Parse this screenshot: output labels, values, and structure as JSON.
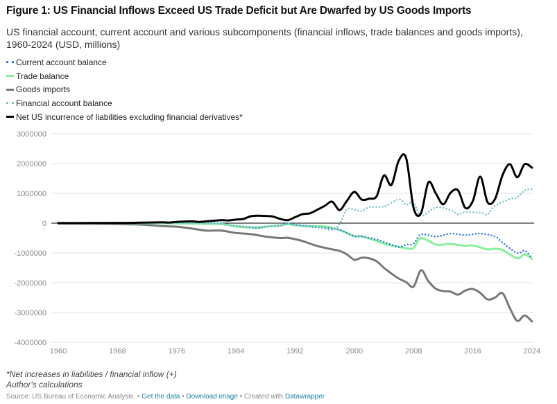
{
  "chart_data": {
    "type": "line",
    "title": "Figure 1: US Financial Inflows Exceed US Trade Deficit but Are Dwarfed by US Goods Imports",
    "subtitle": "US financial account, current account and various subcomponents (financial inflows, trade balances and goods imports), 1960-2024 (USD, millions)",
    "xlabel": "",
    "ylabel": "",
    "xlim": [
      1960,
      2024
    ],
    "ylim": [
      -4000000,
      3000000
    ],
    "x_ticks": [
      "1960",
      "1968",
      "1976",
      "1984",
      "1992",
      "2000",
      "2008",
      "2016",
      "2024"
    ],
    "y_ticks": [
      "3000000",
      "2000000",
      "1000000",
      "0",
      "-1000000",
      "-2000000",
      "-3000000",
      "-4000000"
    ],
    "grid": true,
    "legend_position": "top-left",
    "units": "USD millions (values below in millions of USD millions, i.e. trillions)",
    "series": [
      {
        "name": "Current account balance",
        "color": "#2f80e0",
        "style": "dotted",
        "points": [
          [
            1960,
            0.003
          ],
          [
            1970,
            0.002
          ],
          [
            1976,
            0.004
          ],
          [
            1980,
            0.002
          ],
          [
            1982,
            -0.01
          ],
          [
            1984,
            -0.09
          ],
          [
            1986,
            -0.14
          ],
          [
            1987,
            -0.16
          ],
          [
            1988,
            -0.12
          ],
          [
            1990,
            -0.08
          ],
          [
            1991,
            -0.01
          ],
          [
            1992,
            -0.05
          ],
          [
            1994,
            -0.12
          ],
          [
            1997,
            -0.18
          ],
          [
            1998,
            -0.22
          ],
          [
            2000,
            -0.43
          ],
          [
            2001,
            -0.45
          ],
          [
            2003,
            -0.55
          ],
          [
            2004,
            -0.63
          ],
          [
            2006,
            -0.8
          ],
          [
            2007,
            -0.72
          ],
          [
            2008,
            -0.69
          ],
          [
            2009,
            -0.38
          ],
          [
            2011,
            -0.45
          ],
          [
            2013,
            -0.35
          ],
          [
            2015,
            -0.4
          ],
          [
            2017,
            -0.35
          ],
          [
            2019,
            -0.45
          ],
          [
            2020,
            -0.65
          ],
          [
            2022,
            -1.0
          ],
          [
            2023,
            -0.92
          ],
          [
            2024,
            -1.18
          ]
        ]
      },
      {
        "name": "Trade balance",
        "color": "#86f09a",
        "style": "solid",
        "points": [
          [
            1960,
            0.005
          ],
          [
            1970,
            0.002
          ],
          [
            1976,
            -0.01
          ],
          [
            1980,
            -0.02
          ],
          [
            1982,
            -0.03
          ],
          [
            1984,
            -0.11
          ],
          [
            1986,
            -0.15
          ],
          [
            1987,
            -0.16
          ],
          [
            1988,
            -0.12
          ],
          [
            1990,
            -0.08
          ],
          [
            1991,
            -0.03
          ],
          [
            1992,
            -0.07
          ],
          [
            1994,
            -0.1
          ],
          [
            1996,
            -0.11
          ],
          [
            1998,
            -0.23
          ],
          [
            2000,
            -0.44
          ],
          [
            2001,
            -0.44
          ],
          [
            2003,
            -0.6
          ],
          [
            2004,
            -0.69
          ],
          [
            2006,
            -0.8
          ],
          [
            2007,
            -0.84
          ],
          [
            2008,
            -0.84
          ],
          [
            2009,
            -0.5
          ],
          [
            2011,
            -0.72
          ],
          [
            2012,
            -0.72
          ],
          [
            2013,
            -0.7
          ],
          [
            2015,
            -0.76
          ],
          [
            2016,
            -0.75
          ],
          [
            2018,
            -0.88
          ],
          [
            2019,
            -0.86
          ],
          [
            2020,
            -0.9
          ],
          [
            2022,
            -1.18
          ],
          [
            2023,
            -1.05
          ],
          [
            2024,
            -1.2
          ]
        ]
      },
      {
        "name": "Goods imports",
        "color": "#777777",
        "style": "solid",
        "points": [
          [
            1960,
            -0.015
          ],
          [
            1966,
            -0.025
          ],
          [
            1970,
            -0.04
          ],
          [
            1972,
            -0.06
          ],
          [
            1974,
            -0.1
          ],
          [
            1976,
            -0.12
          ],
          [
            1978,
            -0.18
          ],
          [
            1980,
            -0.25
          ],
          [
            1982,
            -0.25
          ],
          [
            1984,
            -0.33
          ],
          [
            1986,
            -0.37
          ],
          [
            1988,
            -0.45
          ],
          [
            1990,
            -0.5
          ],
          [
            1991,
            -0.49
          ],
          [
            1992,
            -0.54
          ],
          [
            1993,
            -0.6
          ],
          [
            1995,
            -0.77
          ],
          [
            1997,
            -0.88
          ],
          [
            1998,
            -0.93
          ],
          [
            1999,
            -1.05
          ],
          [
            2000,
            -1.23
          ],
          [
            2001,
            -1.16
          ],
          [
            2002,
            -1.18
          ],
          [
            2003,
            -1.28
          ],
          [
            2004,
            -1.5
          ],
          [
            2005,
            -1.69
          ],
          [
            2006,
            -1.86
          ],
          [
            2007,
            -1.98
          ],
          [
            2008,
            -2.13
          ],
          [
            2009,
            -1.58
          ],
          [
            2010,
            -1.95
          ],
          [
            2011,
            -2.2
          ],
          [
            2012,
            -2.28
          ],
          [
            2013,
            -2.3
          ],
          [
            2014,
            -2.4
          ],
          [
            2015,
            -2.26
          ],
          [
            2016,
            -2.21
          ],
          [
            2017,
            -2.34
          ],
          [
            2018,
            -2.56
          ],
          [
            2019,
            -2.5
          ],
          [
            2020,
            -2.35
          ],
          [
            2021,
            -2.85
          ],
          [
            2022,
            -3.28
          ],
          [
            2023,
            -3.1
          ],
          [
            2024,
            -3.3
          ]
        ]
      },
      {
        "name": "Financial account balance",
        "color": "#7fc2c4",
        "style": "dotted",
        "points": [
          [
            1960,
            -0.003
          ],
          [
            1970,
            -0.002
          ],
          [
            1976,
            -0.01
          ],
          [
            1980,
            -0.02
          ],
          [
            1982,
            -0.03
          ],
          [
            1984,
            -0.08
          ],
          [
            1986,
            -0.12
          ],
          [
            1988,
            -0.11
          ],
          [
            1990,
            -0.06
          ],
          [
            1991,
            -0.05
          ],
          [
            1993,
            -0.07
          ],
          [
            1995,
            -0.12
          ],
          [
            1997,
            -0.23
          ],
          [
            1998,
            -0.03
          ],
          [
            1999,
            0.46
          ],
          [
            2000,
            0.45
          ],
          [
            2001,
            0.4
          ],
          [
            2002,
            0.53
          ],
          [
            2004,
            0.56
          ],
          [
            2006,
            0.8
          ],
          [
            2007,
            0.62
          ],
          [
            2008,
            0.7
          ],
          [
            2009,
            0.24
          ],
          [
            2011,
            0.53
          ],
          [
            2013,
            0.44
          ],
          [
            2014,
            0.3
          ],
          [
            2015,
            0.37
          ],
          [
            2017,
            0.35
          ],
          [
            2018,
            0.3
          ],
          [
            2019,
            0.58
          ],
          [
            2021,
            0.81
          ],
          [
            2022,
            0.86
          ],
          [
            2023,
            1.1
          ],
          [
            2024,
            1.14
          ]
        ]
      },
      {
        "name": "Net US incurrence of liabilities excluding financial derivatives*",
        "color": "#000000",
        "style": "solid",
        "points": [
          [
            1960,
            0.002
          ],
          [
            1966,
            0.006
          ],
          [
            1970,
            0.01
          ],
          [
            1972,
            0.02
          ],
          [
            1974,
            0.03
          ],
          [
            1975,
            0.02
          ],
          [
            1976,
            0.04
          ],
          [
            1978,
            0.06
          ],
          [
            1979,
            0.04
          ],
          [
            1980,
            0.06
          ],
          [
            1982,
            0.1
          ],
          [
            1983,
            0.09
          ],
          [
            1984,
            0.12
          ],
          [
            1985,
            0.14
          ],
          [
            1986,
            0.23
          ],
          [
            1987,
            0.25
          ],
          [
            1988,
            0.24
          ],
          [
            1989,
            0.22
          ],
          [
            1990,
            0.14
          ],
          [
            1991,
            0.1
          ],
          [
            1992,
            0.2
          ],
          [
            1993,
            0.3
          ],
          [
            1994,
            0.33
          ],
          [
            1995,
            0.45
          ],
          [
            1996,
            0.58
          ],
          [
            1997,
            0.72
          ],
          [
            1998,
            0.44
          ],
          [
            1999,
            0.75
          ],
          [
            2000,
            1.05
          ],
          [
            2001,
            0.79
          ],
          [
            2002,
            0.82
          ],
          [
            2003,
            0.9
          ],
          [
            2004,
            1.6
          ],
          [
            2005,
            1.28
          ],
          [
            2006,
            2.1
          ],
          [
            2007,
            2.18
          ],
          [
            2008,
            0.51
          ],
          [
            2009,
            0.33
          ],
          [
            2010,
            1.37
          ],
          [
            2011,
            1.0
          ],
          [
            2012,
            0.63
          ],
          [
            2013,
            1.02
          ],
          [
            2014,
            1.1
          ],
          [
            2015,
            0.51
          ],
          [
            2016,
            0.74
          ],
          [
            2017,
            1.56
          ],
          [
            2018,
            0.7
          ],
          [
            2019,
            0.81
          ],
          [
            2020,
            1.6
          ],
          [
            2021,
            1.98
          ],
          [
            2022,
            1.54
          ],
          [
            2023,
            1.98
          ],
          [
            2024,
            1.86
          ]
        ]
      }
    ],
    "notes": [
      "*Net increases in liabilities / financial inflow (+)",
      "Author's calculations"
    ]
  },
  "footer": {
    "source": "Source: US Bureau of Economic Analysis.",
    "sep": " • ",
    "get_data": "Get the data",
    "download": "Download image",
    "created": "Created with",
    "datawrapper": "Datawrapper"
  }
}
